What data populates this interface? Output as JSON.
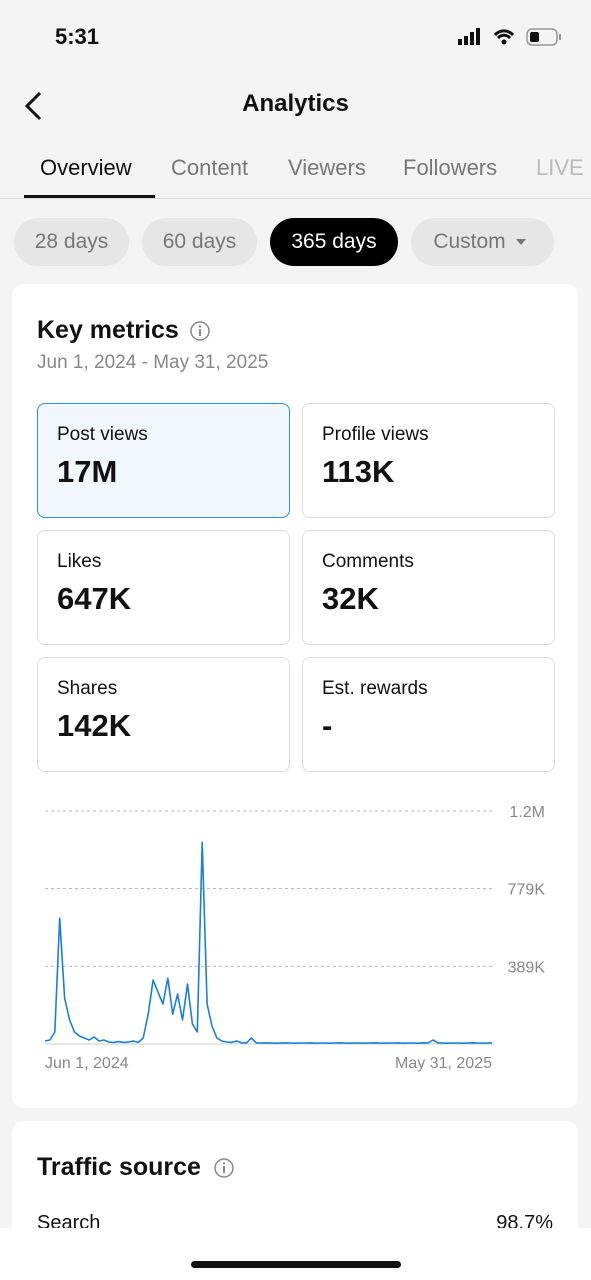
{
  "status_bar": {
    "time": "5:31"
  },
  "header": {
    "title": "Analytics"
  },
  "tabs": [
    "Overview",
    "Content",
    "Viewers",
    "Followers",
    "LIVE"
  ],
  "ranges": [
    "28 days",
    "60 days",
    "365 days",
    "Custom"
  ],
  "key_metrics": {
    "title": "Key metrics",
    "date_range": "Jun 1, 2024 - May 31, 2025",
    "cards": [
      {
        "label": "Post views",
        "value": "17M"
      },
      {
        "label": "Profile views",
        "value": "113K"
      },
      {
        "label": "Likes",
        "value": "647K"
      },
      {
        "label": "Comments",
        "value": "32K"
      },
      {
        "label": "Shares",
        "value": "142K"
      },
      {
        "label": "Est. rewards",
        "value": "-"
      }
    ]
  },
  "chart_data": {
    "type": "line",
    "color": "#1b7fd6",
    "grid": true,
    "categories": [
      "Jun 1, 2024",
      null,
      null,
      null,
      null,
      null,
      null,
      null,
      null,
      null,
      null,
      null,
      null,
      null,
      null,
      null,
      null,
      null,
      null,
      null,
      null,
      null,
      null,
      null,
      null,
      null,
      null,
      null,
      null,
      null,
      null,
      null,
      null,
      null,
      null,
      null,
      null,
      null,
      null,
      null,
      null,
      null,
      null,
      null,
      null,
      null,
      null,
      null,
      null,
      null,
      null,
      null,
      null,
      null,
      null,
      null,
      null,
      null,
      null,
      null,
      null,
      null,
      null,
      null,
      null,
      null,
      null,
      null,
      null,
      null,
      null,
      null,
      null,
      null,
      null,
      null,
      null,
      null,
      null,
      null,
      null,
      null,
      null,
      null,
      null,
      null,
      null,
      null,
      null,
      null,
      null,
      "May 31, 2025"
    ],
    "values": [
      15000,
      20000,
      60000,
      630000,
      230000,
      120000,
      60000,
      40000,
      30000,
      20000,
      35000,
      15000,
      20000,
      10000,
      8000,
      12000,
      8000,
      10000,
      15000,
      8000,
      30000,
      150000,
      320000,
      260000,
      200000,
      330000,
      150000,
      250000,
      120000,
      300000,
      100000,
      60000,
      1010000,
      200000,
      90000,
      30000,
      15000,
      10000,
      8000,
      15000,
      6000,
      5000,
      30000,
      6000,
      5000,
      6000,
      5000,
      4000,
      5000,
      6000,
      5000,
      4000,
      5000,
      5000,
      6000,
      4000,
      5000,
      5000,
      4000,
      5000,
      6000,
      5000,
      4000,
      5000,
      5000,
      4000,
      5000,
      6000,
      5000,
      4000,
      5000,
      5000,
      6000,
      4000,
      5000,
      5000,
      4000,
      6000,
      5000,
      20000,
      6000,
      5000,
      4000,
      5000,
      5000,
      4000,
      5000,
      6000,
      5000,
      4000,
      5000,
      6000
    ],
    "ylim": [
      0,
      1167000
    ],
    "yticks": [
      {
        "value": 389000,
        "label": "389K"
      },
      {
        "value": 779000,
        "label": "779K"
      },
      {
        "value": 1167000,
        "label": "1.2M"
      }
    ]
  },
  "traffic_source": {
    "title": "Traffic source",
    "rows": [
      {
        "label": "Search",
        "value": "98.7%"
      }
    ]
  }
}
